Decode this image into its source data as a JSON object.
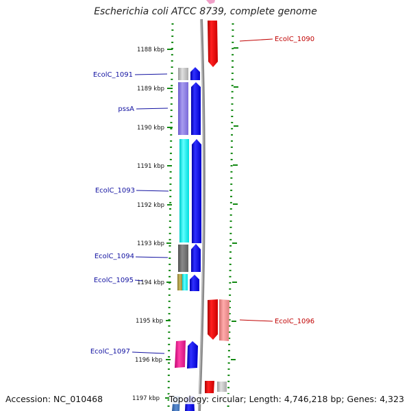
{
  "title": "Escherichia coli ATCC 8739, complete genome",
  "footer": {
    "accession": "Accession: NC_010468",
    "topology": "Topology: circular; Length: 4,746,218 bp; Genes: 4,323"
  },
  "ticks": [
    "1188 kbp",
    "1189 kbp",
    "1190 kbp",
    "1191 kbp",
    "1192 kbp",
    "1193 kbp",
    "1194 kbp",
    "1195 kbp",
    "1196 kbp",
    "1197 kbp"
  ],
  "genes_left": [
    {
      "name": "EcolC_1091"
    },
    {
      "name": "pssA"
    },
    {
      "name": "EcolC_1093"
    },
    {
      "name": "EcolC_1094"
    },
    {
      "name": "EcolC_1095"
    },
    {
      "name": "EcolC_1097"
    }
  ],
  "genes_right": [
    {
      "name": "EcolC_1090"
    },
    {
      "name": "EcolC_1096"
    }
  ],
  "colors": {
    "backbone": "#8a8a8a",
    "cds_blue": "#0000ee",
    "cds_red": "#ee0000",
    "dotted_ring": "#118811",
    "label_left": "#1010a0",
    "label_right": "#c00000"
  }
}
